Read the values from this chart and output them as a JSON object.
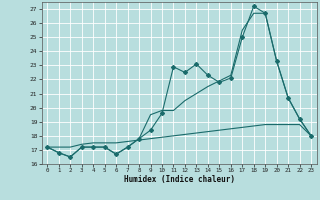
{
  "title": "",
  "xlabel": "Humidex (Indice chaleur)",
  "xlim": [
    -0.5,
    23.5
  ],
  "ylim": [
    16,
    27.5
  ],
  "yticks": [
    16,
    17,
    18,
    19,
    20,
    21,
    22,
    23,
    24,
    25,
    26,
    27
  ],
  "xticks": [
    0,
    1,
    2,
    3,
    4,
    5,
    6,
    7,
    8,
    9,
    10,
    11,
    12,
    13,
    14,
    15,
    16,
    17,
    18,
    19,
    20,
    21,
    22,
    23
  ],
  "background_color": "#b8dede",
  "grid_color": "#d8f0f0",
  "line_color": "#1a6b6b",
  "line1_x": [
    0,
    1,
    2,
    3,
    4,
    5,
    6,
    7,
    8,
    9,
    10,
    11,
    12,
    13,
    14,
    15,
    16,
    17,
    18,
    19,
    20,
    21,
    22,
    23
  ],
  "line1_y": [
    17.2,
    16.8,
    16.5,
    17.2,
    17.2,
    17.2,
    16.7,
    17.2,
    17.8,
    18.4,
    19.6,
    22.9,
    22.5,
    23.1,
    22.3,
    21.8,
    22.1,
    25.0,
    27.2,
    26.7,
    23.3,
    20.7,
    19.2,
    18.0
  ],
  "line2_x": [
    0,
    1,
    2,
    3,
    4,
    5,
    6,
    7,
    8,
    9,
    10,
    11,
    12,
    13,
    14,
    15,
    16,
    17,
    18,
    19,
    20,
    21,
    22,
    23
  ],
  "line2_y": [
    17.2,
    16.8,
    16.5,
    17.2,
    17.2,
    17.2,
    16.7,
    17.2,
    17.8,
    19.5,
    19.8,
    19.8,
    20.5,
    21.0,
    21.5,
    21.9,
    22.3,
    25.5,
    26.7,
    26.7,
    23.3,
    20.7,
    19.2,
    18.0
  ],
  "line3_x": [
    0,
    1,
    2,
    3,
    4,
    5,
    6,
    7,
    8,
    9,
    10,
    11,
    12,
    13,
    14,
    15,
    16,
    17,
    18,
    19,
    20,
    21,
    22,
    23
  ],
  "line3_y": [
    17.2,
    17.2,
    17.2,
    17.4,
    17.5,
    17.5,
    17.5,
    17.6,
    17.7,
    17.8,
    17.9,
    18.0,
    18.1,
    18.2,
    18.3,
    18.4,
    18.5,
    18.6,
    18.7,
    18.8,
    18.8,
    18.8,
    18.8,
    18.0
  ],
  "marker_x": [
    0,
    1,
    2,
    3,
    4,
    5,
    6,
    7,
    8,
    9,
    10,
    11,
    12,
    13,
    14,
    15,
    16,
    17,
    18,
    19,
    20,
    21,
    22,
    23
  ],
  "marker_y": [
    17.2,
    16.8,
    16.5,
    17.2,
    17.2,
    17.2,
    16.7,
    17.2,
    17.8,
    18.4,
    19.6,
    22.9,
    22.5,
    23.1,
    22.3,
    21.8,
    22.1,
    25.0,
    27.2,
    26.7,
    23.3,
    20.7,
    19.2,
    18.0
  ]
}
